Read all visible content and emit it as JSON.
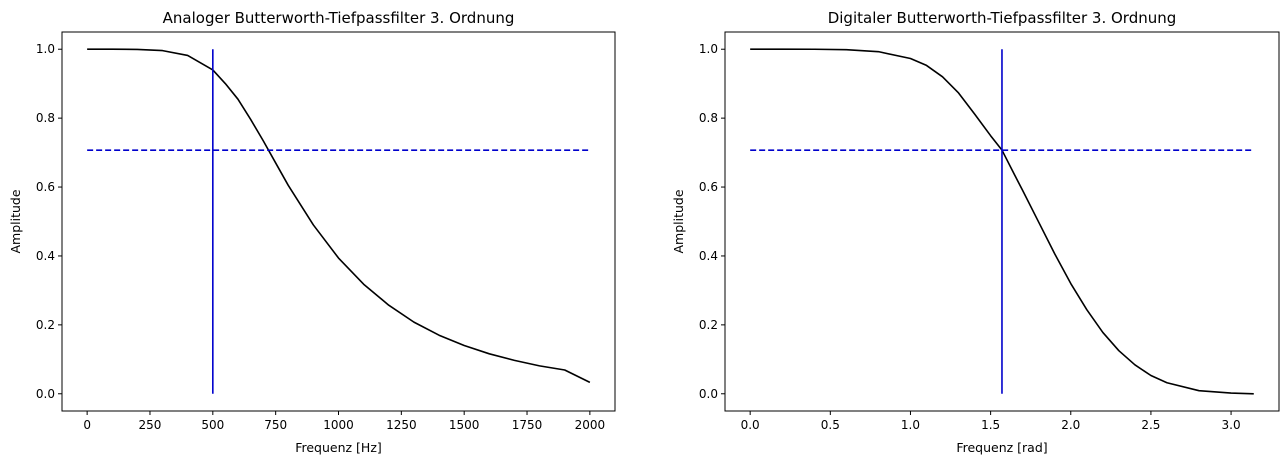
{
  "chart_data": [
    {
      "type": "line",
      "title": "Analoger Butterworth-Tiefpassfilter 3. Ordnung",
      "xlabel": "Frequenz [Hz]",
      "ylabel": "Amplitude",
      "xlim": [
        -100,
        2100
      ],
      "ylim": [
        -0.05,
        1.05
      ],
      "xticks": [
        0,
        250,
        500,
        750,
        1000,
        1250,
        1500,
        1750,
        2000
      ],
      "xtick_labels": [
        "0",
        "250",
        "500",
        "750",
        "1000",
        "1250",
        "1500",
        "1750",
        "2000"
      ],
      "yticks": [
        0.0,
        0.2,
        0.4,
        0.6,
        0.8,
        1.0
      ],
      "ytick_labels": [
        "0.0",
        "0.2",
        "0.4",
        "0.6",
        "0.8",
        "1.0"
      ],
      "grid": false,
      "series": [
        {
          "style": "solid",
          "color": "#000000",
          "x": [
            0,
            100,
            200,
            300,
            400,
            500,
            550,
            600,
            650,
            700,
            750,
            800,
            900,
            1000,
            1100,
            1200,
            1300,
            1400,
            1500,
            1600,
            1700,
            1800,
            1900,
            2000
          ],
          "values": [
            1.0,
            1.0,
            0.9995,
            0.996,
            0.982,
            0.94,
            0.9,
            0.855,
            0.797,
            0.735,
            0.67,
            0.605,
            0.49,
            0.394,
            0.318,
            0.257,
            0.208,
            0.17,
            0.14,
            0.116,
            0.097,
            0.081,
            0.069,
            0.033
          ]
        },
        {
          "style": "dashed",
          "color": "#0000cc",
          "x": [
            0,
            2000
          ],
          "values": [
            0.707,
            0.707
          ]
        },
        {
          "style": "solid",
          "color": "#0000cc",
          "x": [
            500,
            500
          ],
          "values": [
            0.0,
            1.0
          ]
        }
      ]
    },
    {
      "type": "line",
      "title": "Digitaler Butterworth-Tiefpassfilter 3. Ordnung",
      "xlabel": "Frequenz [rad]",
      "ylabel": "Amplitude",
      "xlim": [
        -0.157,
        3.299
      ],
      "ylim": [
        -0.05,
        1.05
      ],
      "xticks": [
        0.0,
        0.5,
        1.0,
        1.5,
        2.0,
        2.5,
        3.0
      ],
      "xtick_labels": [
        "0.0",
        "0.5",
        "1.0",
        "1.5",
        "2.0",
        "2.5",
        "3.0"
      ],
      "yticks": [
        0.0,
        0.2,
        0.4,
        0.6,
        0.8,
        1.0
      ],
      "ytick_labels": [
        "0.0",
        "0.2",
        "0.4",
        "0.6",
        "0.8",
        "1.0"
      ],
      "grid": false,
      "series": [
        {
          "style": "solid",
          "color": "#000000",
          "x": [
            0.0,
            0.2,
            0.4,
            0.6,
            0.8,
            1.0,
            1.1,
            1.2,
            1.3,
            1.4,
            1.5,
            1.571,
            1.65,
            1.7,
            1.8,
            1.9,
            2.0,
            2.1,
            2.2,
            2.3,
            2.4,
            2.5,
            2.6,
            2.8,
            3.0,
            3.1416
          ],
          "values": [
            1.0,
            1.0,
            0.9999,
            0.9986,
            0.993,
            0.973,
            0.953,
            0.92,
            0.873,
            0.812,
            0.749,
            0.707,
            0.635,
            0.59,
            0.498,
            0.406,
            0.32,
            0.244,
            0.178,
            0.125,
            0.084,
            0.053,
            0.032,
            0.009,
            0.002,
            0.0
          ]
        },
        {
          "style": "dashed",
          "color": "#0000cc",
          "x": [
            0.0,
            3.1416
          ],
          "values": [
            0.707,
            0.707
          ]
        },
        {
          "style": "solid",
          "color": "#0000cc",
          "x": [
            1.5708,
            1.5708
          ],
          "values": [
            0.0,
            1.0
          ]
        }
      ]
    }
  ]
}
